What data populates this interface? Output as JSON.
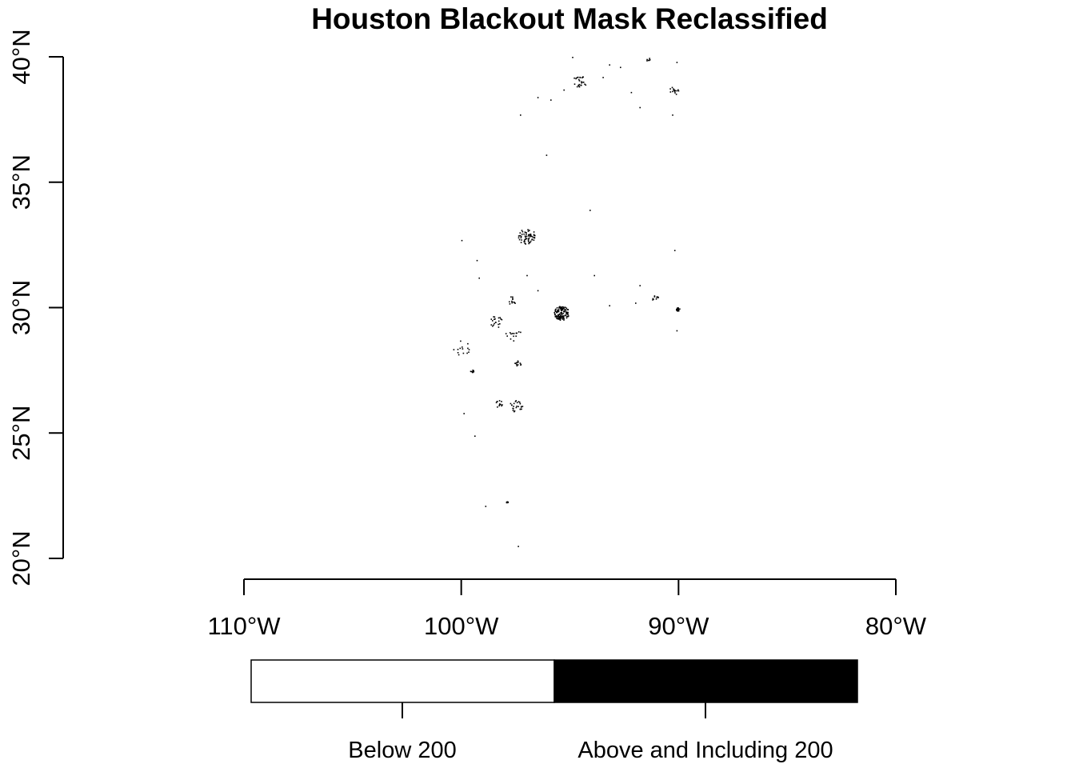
{
  "title": "Houston Blackout Mask Reclassified",
  "colors": {
    "below": "#ffffff",
    "above": "#000000"
  },
  "axes": {
    "x": {
      "range": [
        -110,
        -80
      ],
      "ticks": [
        {
          "value": -110,
          "label": "110°W"
        },
        {
          "value": -100,
          "label": "100°W"
        },
        {
          "value": -90,
          "label": "90°W"
        },
        {
          "value": -80,
          "label": "80°W"
        }
      ]
    },
    "y": {
      "range": [
        20,
        40
      ],
      "ticks": [
        {
          "value": 20,
          "label": "20°N"
        },
        {
          "value": 25,
          "label": "25°N"
        },
        {
          "value": 30,
          "label": "30°N"
        },
        {
          "value": 35,
          "label": "35°N"
        },
        {
          "value": 40,
          "label": "40°N"
        }
      ]
    }
  },
  "legend": {
    "classes": [
      {
        "label": "Below 200",
        "color": "#ffffff"
      },
      {
        "label": "Above and Including 200",
        "color": "#000000"
      }
    ]
  },
  "clusters": [
    {
      "lon": -95.4,
      "lat": 29.8,
      "spread": 0.35,
      "count": 120
    },
    {
      "lon": -90.05,
      "lat": 29.95,
      "spread": 0.08,
      "count": 30
    },
    {
      "lon": -97.0,
      "lat": 32.85,
      "spread": 0.4,
      "count": 60
    },
    {
      "lon": -94.6,
      "lat": 39.05,
      "spread": 0.3,
      "count": 25
    },
    {
      "lon": -90.2,
      "lat": 38.7,
      "spread": 0.25,
      "count": 15
    },
    {
      "lon": -98.4,
      "lat": 29.45,
      "spread": 0.3,
      "count": 20
    },
    {
      "lon": -97.7,
      "lat": 30.3,
      "spread": 0.2,
      "count": 12
    },
    {
      "lon": -97.4,
      "lat": 27.8,
      "spread": 0.15,
      "count": 12
    },
    {
      "lon": -97.5,
      "lat": 26.1,
      "spread": 0.3,
      "count": 25
    },
    {
      "lon": -98.3,
      "lat": 26.2,
      "spread": 0.2,
      "count": 12
    },
    {
      "lon": -99.5,
      "lat": 27.5,
      "spread": 0.1,
      "count": 10
    },
    {
      "lon": -100.0,
      "lat": 28.4,
      "spread": 0.4,
      "count": 14
    },
    {
      "lon": -97.9,
      "lat": 22.25,
      "spread": 0.05,
      "count": 8
    },
    {
      "lon": -91.1,
      "lat": 30.4,
      "spread": 0.15,
      "count": 10
    },
    {
      "lon": -91.4,
      "lat": 39.9,
      "spread": 0.1,
      "count": 6
    },
    {
      "lon": -97.6,
      "lat": 29.0,
      "spread": 0.4,
      "count": 14
    }
  ],
  "scattered": [
    [
      -97.4,
      20.5
    ],
    [
      -98.9,
      22.1
    ],
    [
      -99.4,
      24.9
    ],
    [
      -99.9,
      25.8
    ],
    [
      -100.0,
      32.7
    ],
    [
      -99.3,
      31.9
    ],
    [
      -99.2,
      31.2
    ],
    [
      -96.1,
      36.1
    ],
    [
      -97.3,
      37.7
    ],
    [
      -96.5,
      38.4
    ],
    [
      -95.9,
      38.3
    ],
    [
      -94.3,
      38.9
    ],
    [
      -93.2,
      39.7
    ],
    [
      -92.2,
      38.6
    ],
    [
      -91.8,
      38.0
    ],
    [
      -90.3,
      37.7
    ],
    [
      -90.2,
      32.3
    ],
    [
      -94.1,
      33.9
    ],
    [
      -93.9,
      31.3
    ],
    [
      -93.2,
      30.1
    ],
    [
      -92.0,
      30.2
    ],
    [
      -91.8,
      30.9
    ],
    [
      -97.0,
      31.3
    ],
    [
      -96.5,
      30.7
    ],
    [
      -90.1,
      29.1
    ],
    [
      -94.9,
      40.0
    ],
    [
      -92.7,
      39.6
    ],
    [
      -90.1,
      39.8
    ],
    [
      -93.5,
      39.2
    ],
    [
      -95.3,
      38.7
    ]
  ]
}
